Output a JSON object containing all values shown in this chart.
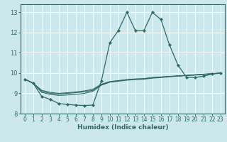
{
  "bg_color": "#cce8ec",
  "grid_color": "#ffffff",
  "line_color": "#2e6b5e",
  "marker_color": "#2e6b5e",
  "xlabel": "Humidex (Indice chaleur)",
  "xlim": [
    -0.5,
    23.5
  ],
  "ylim": [
    8.0,
    13.4
  ],
  "yticks": [
    8,
    9,
    10,
    11,
    12,
    13
  ],
  "xticks": [
    0,
    1,
    2,
    3,
    4,
    5,
    6,
    7,
    8,
    9,
    10,
    11,
    12,
    13,
    14,
    15,
    16,
    17,
    18,
    19,
    20,
    21,
    22,
    23
  ],
  "series": [
    {
      "x": [
        0,
        1,
        2,
        3,
        4,
        5,
        6,
        7,
        8,
        9,
        10,
        11,
        12,
        13,
        14,
        15,
        16,
        17,
        18,
        19,
        20,
        21,
        22,
        23
      ],
      "y": [
        9.7,
        9.5,
        8.85,
        8.7,
        8.5,
        8.45,
        8.42,
        8.4,
        8.42,
        9.6,
        11.5,
        12.1,
        13.0,
        12.1,
        12.1,
        13.0,
        12.65,
        11.4,
        10.4,
        9.8,
        9.78,
        9.85,
        9.95,
        10.0
      ],
      "lw": 0.9,
      "ms": 2.2,
      "has_markers": true
    },
    {
      "x": [
        0,
        1,
        2,
        3,
        4,
        5,
        6,
        7,
        8,
        9,
        10,
        11,
        12,
        13,
        14,
        15,
        16,
        17,
        18,
        19,
        20,
        21,
        22,
        23
      ],
      "y": [
        9.7,
        9.5,
        9.05,
        8.95,
        8.9,
        8.92,
        8.95,
        9.0,
        9.1,
        9.4,
        9.55,
        9.6,
        9.65,
        9.68,
        9.7,
        9.75,
        9.78,
        9.82,
        9.85,
        9.88,
        9.9,
        9.93,
        9.97,
        10.0
      ],
      "lw": 0.8,
      "ms": 1.5,
      "has_markers": false
    },
    {
      "x": [
        0,
        1,
        2,
        3,
        4,
        5,
        6,
        7,
        8,
        9,
        10,
        11,
        12,
        13,
        14,
        15,
        16,
        17,
        18,
        19,
        20,
        21,
        22,
        23
      ],
      "y": [
        9.7,
        9.5,
        9.1,
        9.0,
        8.97,
        9.0,
        9.03,
        9.08,
        9.15,
        9.42,
        9.57,
        9.62,
        9.67,
        9.7,
        9.72,
        9.77,
        9.8,
        9.83,
        9.86,
        9.88,
        9.91,
        9.94,
        9.97,
        10.0
      ],
      "lw": 0.8,
      "ms": 1.5,
      "has_markers": false
    },
    {
      "x": [
        0,
        1,
        2,
        3,
        4,
        5,
        6,
        7,
        8,
        9,
        10,
        11,
        12,
        13,
        14,
        15,
        16,
        17,
        18,
        19,
        20,
        21,
        22,
        23
      ],
      "y": [
        9.7,
        9.5,
        9.15,
        9.05,
        9.0,
        9.03,
        9.07,
        9.12,
        9.2,
        9.45,
        9.58,
        9.63,
        9.68,
        9.71,
        9.73,
        9.78,
        9.81,
        9.84,
        9.86,
        9.89,
        9.92,
        9.95,
        9.97,
        10.0
      ],
      "lw": 0.8,
      "ms": 1.5,
      "has_markers": false
    }
  ]
}
